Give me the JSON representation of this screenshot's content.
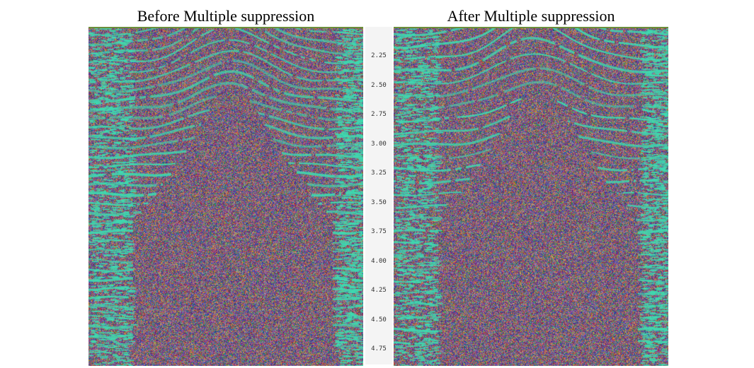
{
  "titles": {
    "left": "Before Multiple suppression",
    "right": "After Multiple suppression"
  },
  "axis": {
    "ticks": [
      "2.25",
      "2.50",
      "2.75",
      "3.00",
      "3.25",
      "3.50",
      "3.75",
      "4.00",
      "4.25",
      "4.50",
      "4.75"
    ],
    "range": [
      2.0,
      4.88
    ]
  },
  "colors": {
    "reflector": "#3fd9b0",
    "noise_palette": [
      "#7b3d8f",
      "#2a5fb0",
      "#b03a4a",
      "#3a9a55",
      "#c98a2e",
      "#8a8a8a",
      "#5a3aa0",
      "#a05a8a"
    ],
    "frame_line": "#6b8f3a"
  }
}
